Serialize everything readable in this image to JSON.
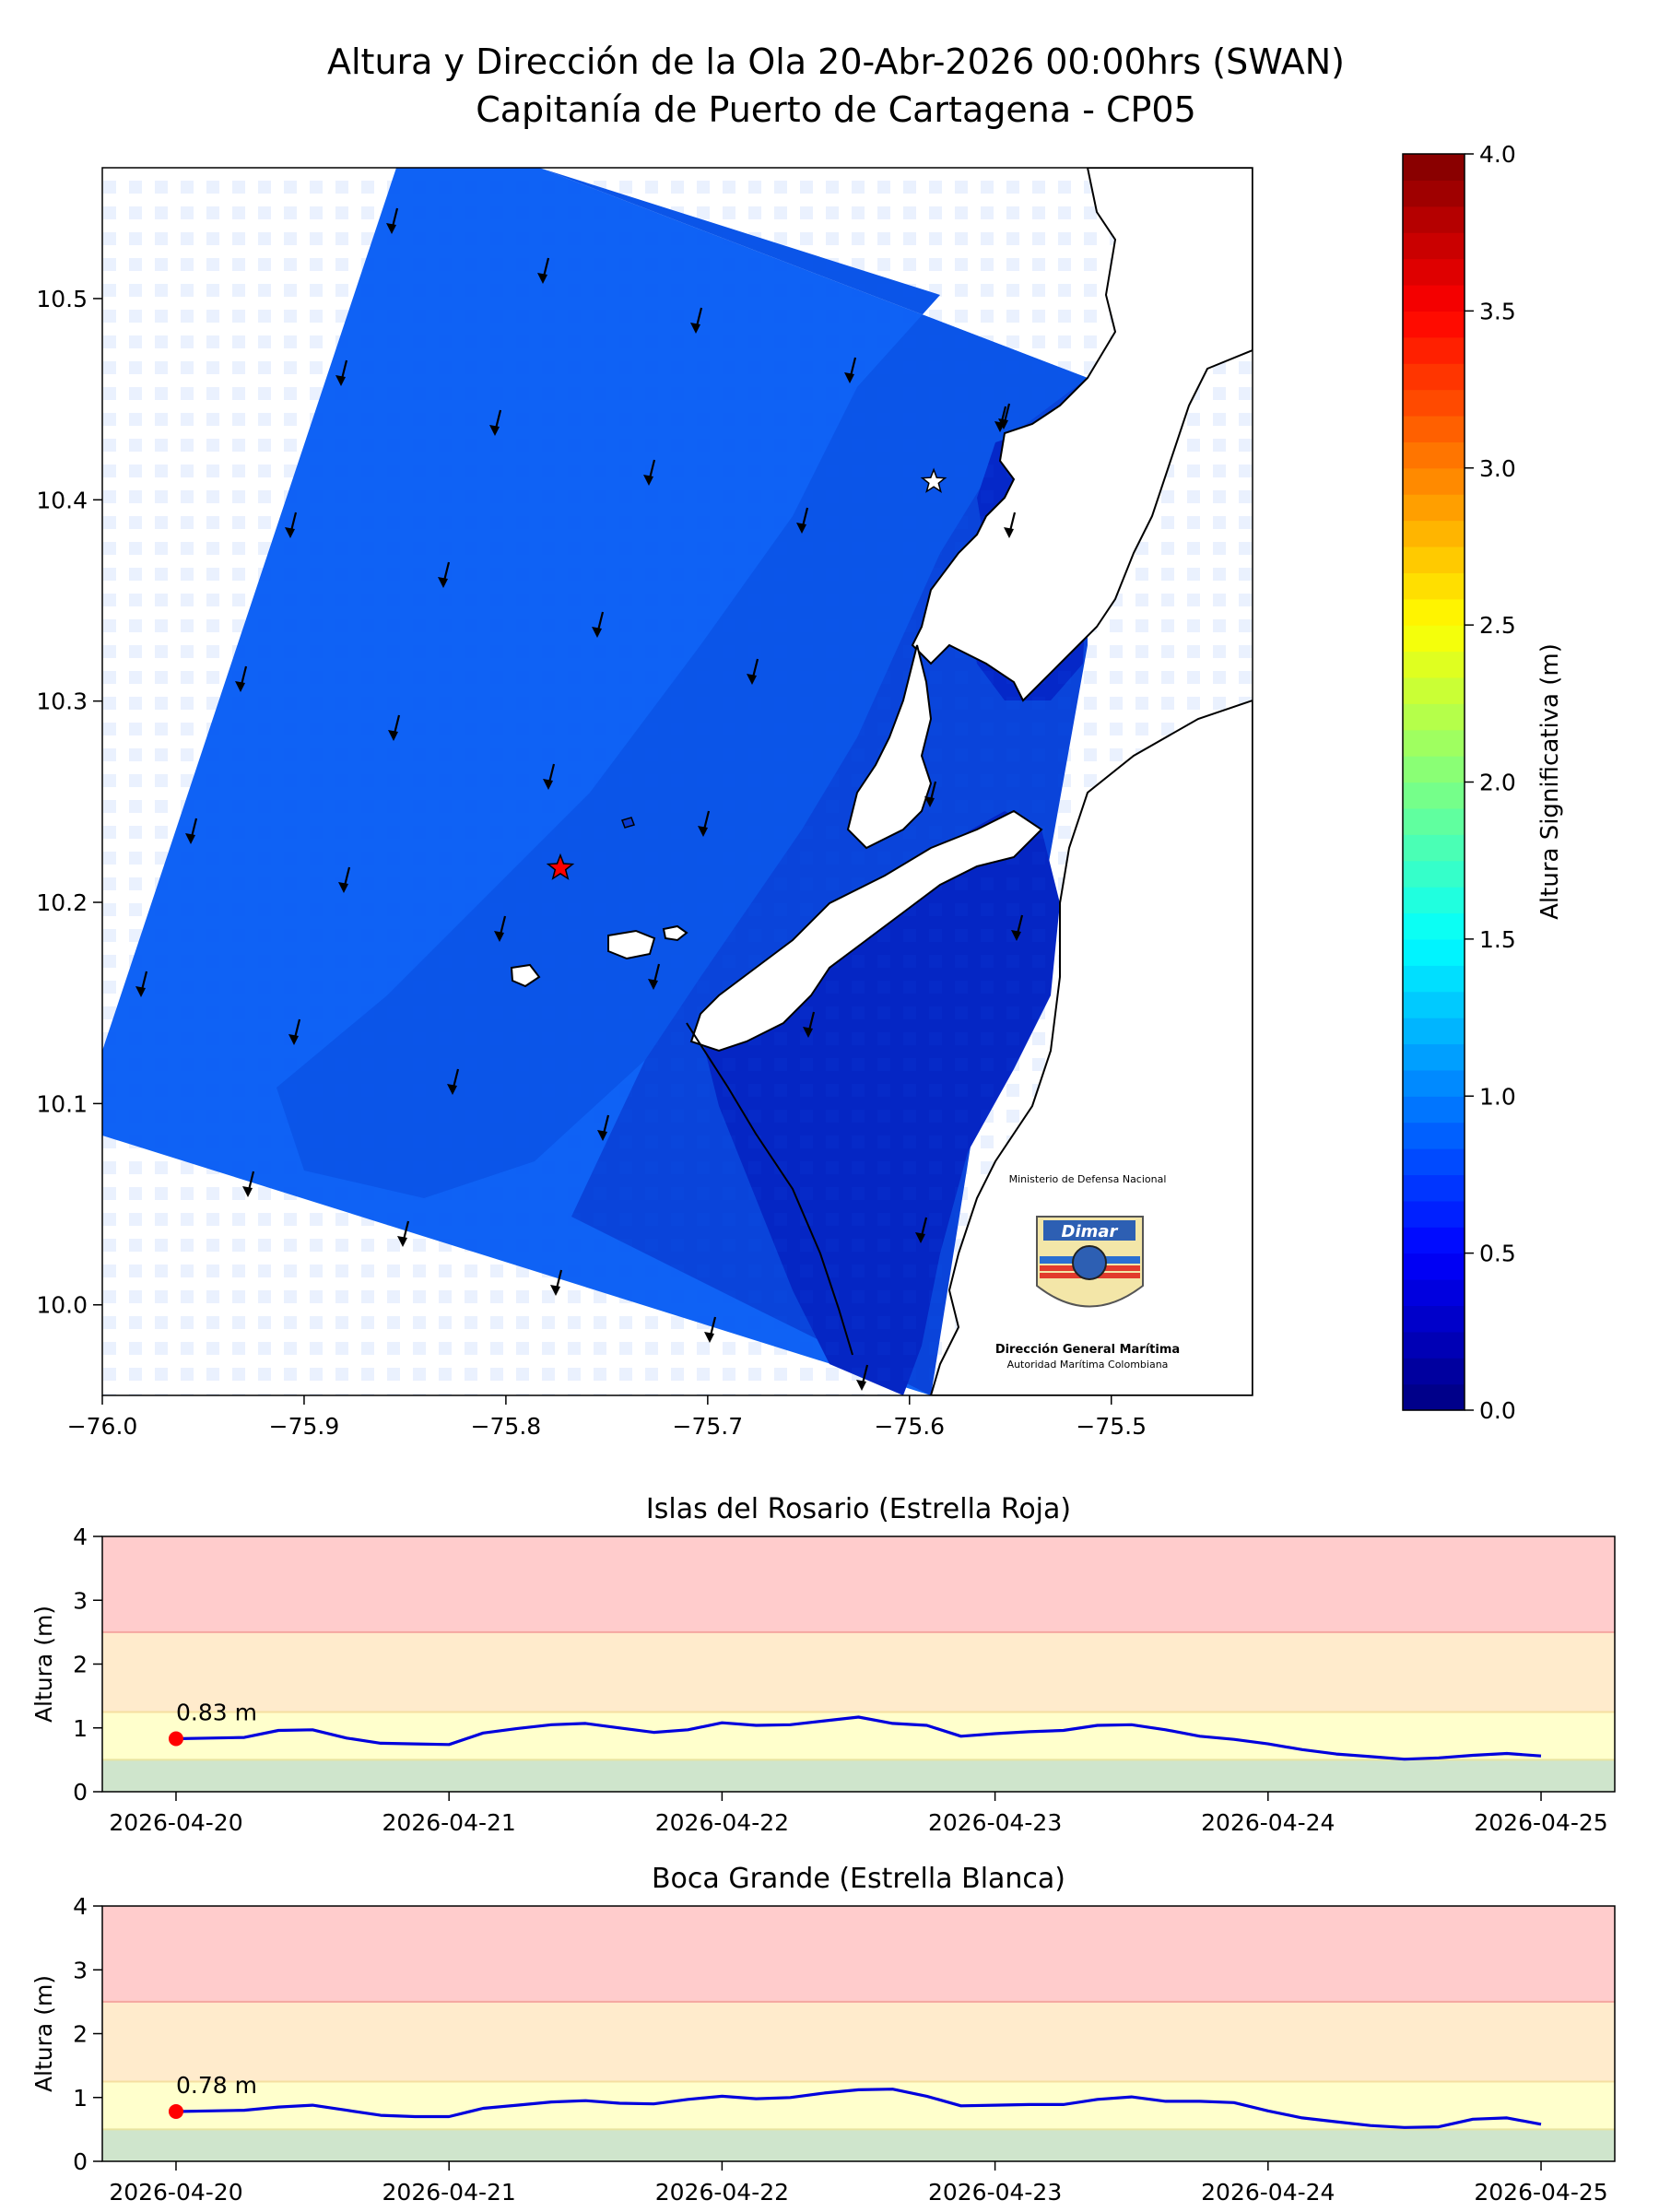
{
  "figure": {
    "title_line1": "Altura y Dirección de la Ola 20-Abr-2026 00:00hrs (SWAN)",
    "title_line2": "Capitanía de Puerto de Cartagena - CP05"
  },
  "map": {
    "x_ticks": [
      "−76.0",
      "−75.9",
      "−75.8",
      "−75.7",
      "−75.6",
      "−75.5"
    ],
    "y_ticks": [
      "10.0",
      "10.1",
      "10.2",
      "10.3",
      "10.4",
      "10.5"
    ],
    "xlim": [
      -76.0,
      -75.43
    ],
    "ylim": [
      9.955,
      10.565
    ],
    "red_star": {
      "lon": -75.773,
      "lat": 10.217
    },
    "white_star": {
      "lon": -75.588,
      "lat": 10.409
    },
    "logo": {
      "top_text": "Ministerio de Defensa Nacional",
      "brand": "Dimar",
      "bottom_text_1": "Dirección General Marítima",
      "bottom_text_2": "Autoridad Marítima Colombiana"
    }
  },
  "colorbar": {
    "label": "Altura Significativa (m)",
    "ticks": [
      "0.0",
      "0.5",
      "1.0",
      "1.5",
      "2.0",
      "2.5",
      "3.0",
      "3.5",
      "4.0"
    ],
    "range": [
      0,
      4
    ],
    "colormap": "jet"
  },
  "chart_data": [
    {
      "type": "line",
      "title": "Islas del Rosario (Estrella Roja)",
      "ylabel": "Altura (m)",
      "ylim": [
        0,
        4
      ],
      "y_ticks": [
        "0",
        "1",
        "2",
        "3",
        "4"
      ],
      "x_tick_labels": [
        "2026-04-20",
        "2026-04-21",
        "2026-04-22",
        "2026-04-23",
        "2026-04-24",
        "2026-04-25"
      ],
      "x_days": [
        0,
        0.125,
        0.25,
        0.375,
        0.5,
        0.625,
        0.75,
        0.875,
        1,
        1.125,
        1.25,
        1.375,
        1.5,
        1.625,
        1.75,
        1.875,
        2,
        2.125,
        2.25,
        2.375,
        2.5,
        2.625,
        2.75,
        2.875,
        3,
        3.125,
        3.25,
        3.375,
        3.5,
        3.625,
        3.75,
        3.875,
        4,
        4.125,
        4.25,
        4.375,
        4.5,
        4.625,
        4.75,
        4.875,
        5
      ],
      "values": [
        0.83,
        0.84,
        0.85,
        0.96,
        0.97,
        0.84,
        0.76,
        0.75,
        0.74,
        0.92,
        0.99,
        1.05,
        1.07,
        1.0,
        0.93,
        0.97,
        1.08,
        1.04,
        1.05,
        1.11,
        1.17,
        1.07,
        1.04,
        0.87,
        0.91,
        0.94,
        0.96,
        1.04,
        1.05,
        0.97,
        0.87,
        0.82,
        0.75,
        0.66,
        0.59,
        0.55,
        0.51,
        0.53,
        0.57,
        0.6,
        0.56
      ],
      "current_value_label": "0.83 m",
      "current_index": 0,
      "line_color": "#0000dd",
      "marker_color": "#ff0000",
      "bands": [
        {
          "from": 0,
          "to": 0.5,
          "color": "#cfe5cc"
        },
        {
          "from": 0.5,
          "to": 1.25,
          "color": "#ffffcc"
        },
        {
          "from": 1.25,
          "to": 2.5,
          "color": "#ffebcc"
        },
        {
          "from": 2.5,
          "to": 4,
          "color": "#ffcccc"
        }
      ]
    },
    {
      "type": "line",
      "title": "Boca Grande (Estrella Blanca)",
      "ylabel": "Altura (m)",
      "ylim": [
        0,
        4
      ],
      "y_ticks": [
        "0",
        "1",
        "2",
        "3",
        "4"
      ],
      "x_tick_labels": [
        "2026-04-20",
        "2026-04-21",
        "2026-04-22",
        "2026-04-23",
        "2026-04-24",
        "2026-04-25"
      ],
      "x_days": [
        0,
        0.125,
        0.25,
        0.375,
        0.5,
        0.625,
        0.75,
        0.875,
        1,
        1.125,
        1.25,
        1.375,
        1.5,
        1.625,
        1.75,
        1.875,
        2,
        2.125,
        2.25,
        2.375,
        2.5,
        2.625,
        2.75,
        2.875,
        3,
        3.125,
        3.25,
        3.375,
        3.5,
        3.625,
        3.75,
        3.875,
        4,
        4.125,
        4.25,
        4.375,
        4.5,
        4.625,
        4.75,
        4.875,
        5
      ],
      "values": [
        0.78,
        0.79,
        0.8,
        0.85,
        0.88,
        0.8,
        0.72,
        0.7,
        0.7,
        0.83,
        0.88,
        0.93,
        0.95,
        0.91,
        0.9,
        0.97,
        1.02,
        0.98,
        1.0,
        1.07,
        1.12,
        1.13,
        1.02,
        0.87,
        0.88,
        0.89,
        0.89,
        0.97,
        1.01,
        0.94,
        0.94,
        0.92,
        0.79,
        0.68,
        0.62,
        0.56,
        0.53,
        0.54,
        0.66,
        0.68,
        0.58
      ],
      "current_value_label": "0.78 m",
      "current_index": 0,
      "line_color": "#0000dd",
      "marker_color": "#ff0000",
      "bands": [
        {
          "from": 0,
          "to": 0.5,
          "color": "#cfe5cc"
        },
        {
          "from": 0.5,
          "to": 1.25,
          "color": "#ffffcc"
        },
        {
          "from": 1.25,
          "to": 2.5,
          "color": "#ffebcc"
        },
        {
          "from": 2.5,
          "to": 4,
          "color": "#ffcccc"
        }
      ]
    }
  ]
}
